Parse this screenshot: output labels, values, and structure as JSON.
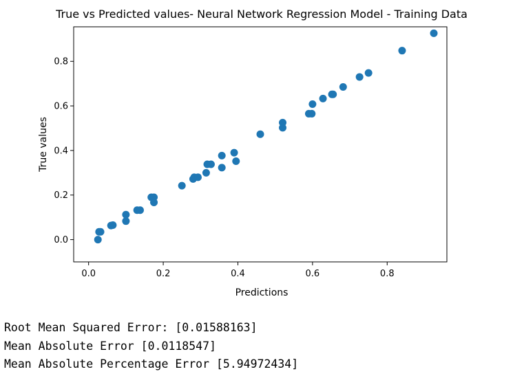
{
  "chart_data": {
    "type": "scatter",
    "title": "True vs Predicted values- Neural Network Regression Model - Training Data",
    "xlabel": "Predictions",
    "ylabel": "True values",
    "xlim": [
      -0.04,
      0.96
    ],
    "ylim": [
      -0.1,
      0.955
    ],
    "xticks": [
      0.0,
      0.2,
      0.4,
      0.6,
      0.8
    ],
    "yticks": [
      0.0,
      0.2,
      0.4,
      0.6,
      0.8
    ],
    "tick_labels_x": [
      "0.0",
      "0.2",
      "0.4",
      "0.6",
      "0.8"
    ],
    "tick_labels_y": [
      "0.0",
      "0.2",
      "0.4",
      "0.6",
      "0.8"
    ],
    "grid": false,
    "marker_color": "#1f77b4",
    "points": [
      {
        "x": 0.025,
        "y": 0.0
      },
      {
        "x": 0.028,
        "y": 0.035
      },
      {
        "x": 0.032,
        "y": 0.035
      },
      {
        "x": 0.06,
        "y": 0.063
      },
      {
        "x": 0.065,
        "y": 0.065
      },
      {
        "x": 0.1,
        "y": 0.083
      },
      {
        "x": 0.1,
        "y": 0.112
      },
      {
        "x": 0.13,
        "y": 0.132
      },
      {
        "x": 0.138,
        "y": 0.132
      },
      {
        "x": 0.168,
        "y": 0.19
      },
      {
        "x": 0.175,
        "y": 0.19
      },
      {
        "x": 0.175,
        "y": 0.167
      },
      {
        "x": 0.25,
        "y": 0.242
      },
      {
        "x": 0.28,
        "y": 0.272
      },
      {
        "x": 0.283,
        "y": 0.28
      },
      {
        "x": 0.293,
        "y": 0.28
      },
      {
        "x": 0.315,
        "y": 0.3
      },
      {
        "x": 0.318,
        "y": 0.338
      },
      {
        "x": 0.328,
        "y": 0.338
      },
      {
        "x": 0.357,
        "y": 0.377
      },
      {
        "x": 0.357,
        "y": 0.323
      },
      {
        "x": 0.39,
        "y": 0.39
      },
      {
        "x": 0.395,
        "y": 0.352
      },
      {
        "x": 0.46,
        "y": 0.473
      },
      {
        "x": 0.52,
        "y": 0.525
      },
      {
        "x": 0.52,
        "y": 0.502
      },
      {
        "x": 0.59,
        "y": 0.565
      },
      {
        "x": 0.598,
        "y": 0.565
      },
      {
        "x": 0.6,
        "y": 0.608
      },
      {
        "x": 0.628,
        "y": 0.633
      },
      {
        "x": 0.652,
        "y": 0.652
      },
      {
        "x": 0.655,
        "y": 0.652
      },
      {
        "x": 0.682,
        "y": 0.685
      },
      {
        "x": 0.726,
        "y": 0.73
      },
      {
        "x": 0.75,
        "y": 0.748
      },
      {
        "x": 0.84,
        "y": 0.848
      },
      {
        "x": 0.925,
        "y": 0.926
      }
    ]
  },
  "metrics": {
    "rmse": "Root Mean Squared Error: [0.01588163]",
    "mae": "Mean Absolute Error [0.0118547]",
    "mape": "Mean Absolute Percentage Error [5.94972434]"
  }
}
